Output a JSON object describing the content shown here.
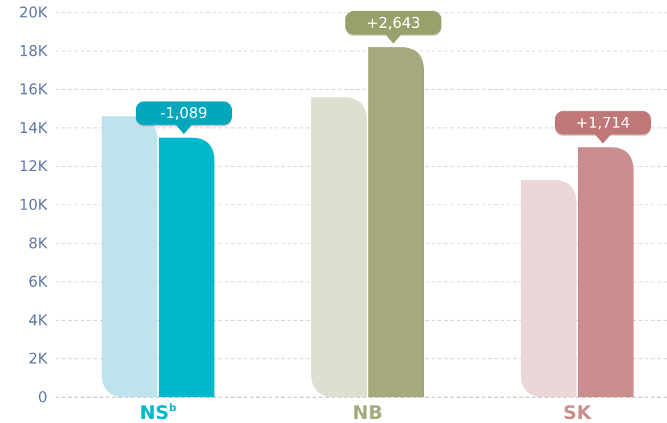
{
  "chart_data": {
    "type": "bar",
    "title": "",
    "xlabel": "",
    "ylabel": "",
    "ylim": [
      0,
      20000
    ],
    "yticks": [
      {
        "value": 0,
        "label": "0"
      },
      {
        "value": 2000,
        "label": "2K"
      },
      {
        "value": 4000,
        "label": "4K"
      },
      {
        "value": 6000,
        "label": "6K"
      },
      {
        "value": 8000,
        "label": "8K"
      },
      {
        "value": 10000,
        "label": "10K"
      },
      {
        "value": 12000,
        "label": "12K"
      },
      {
        "value": 14000,
        "label": "14K"
      },
      {
        "value": 16000,
        "label": "16K"
      },
      {
        "value": 18000,
        "label": "18K"
      },
      {
        "value": 20000,
        "label": "20K"
      }
    ],
    "grid": true,
    "categories": [
      {
        "label": "NS",
        "sup": "b",
        "color": "#00b8cc",
        "light_color": "#bde3ec",
        "callout_color": "#00a7bd",
        "values": [
          14600,
          13500
        ],
        "change_label": "-1,089"
      },
      {
        "label": "NB",
        "sup": "",
        "color": "#a5a97b",
        "light_color": "#dfdfcf",
        "callout_color": "#9aa06b",
        "values": [
          15600,
          18200
        ],
        "change_label": "+2,643"
      },
      {
        "label": "SK",
        "sup": "",
        "color": "#c98e8d",
        "light_color": "#ecd7d8",
        "callout_color": "#c07778",
        "values": [
          11300,
          13000
        ],
        "change_label": "+1,714"
      }
    ]
  }
}
